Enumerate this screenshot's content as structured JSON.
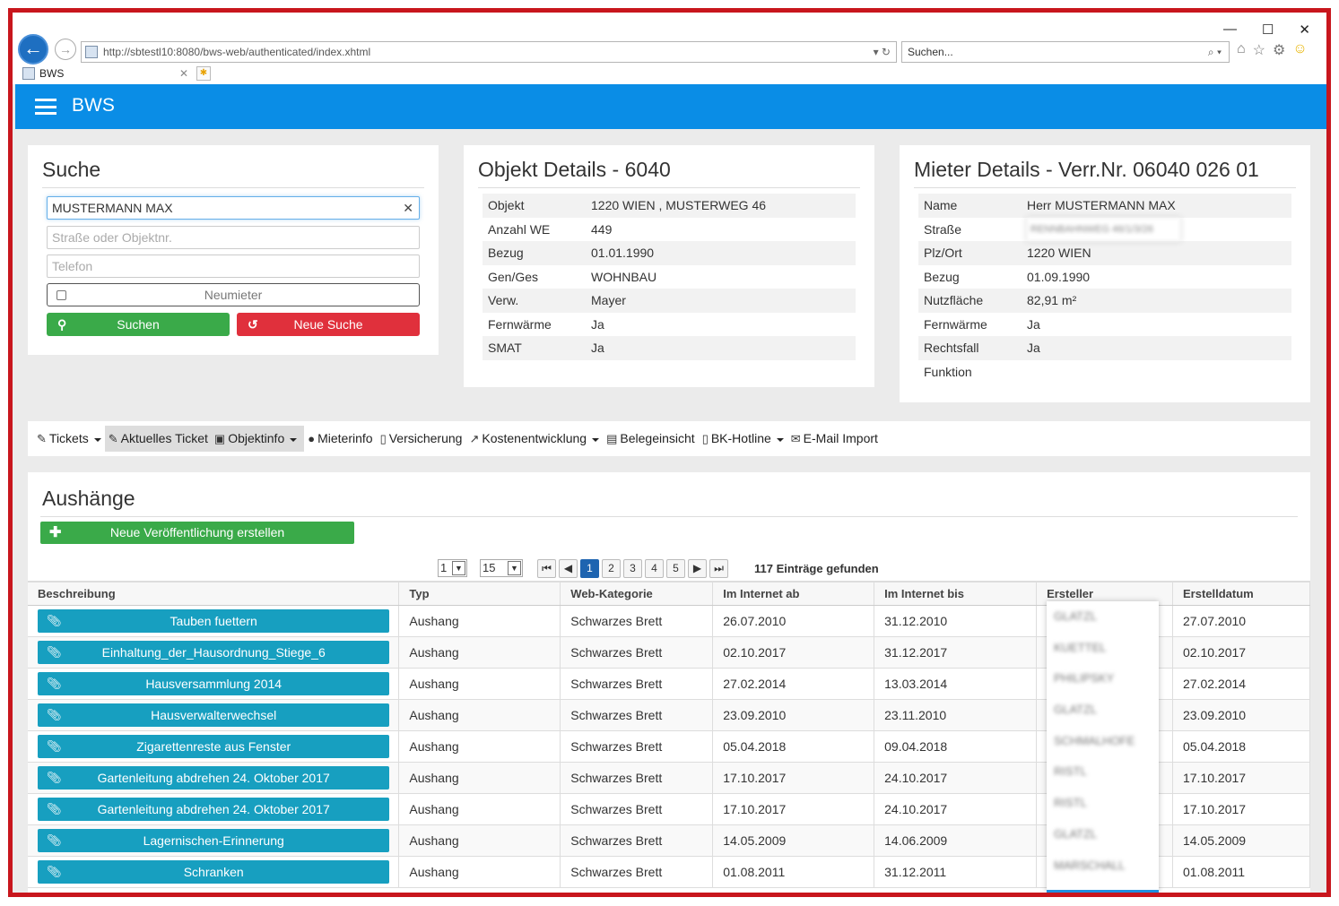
{
  "browser": {
    "url": "http://sbtestl10:8080/bws-web/authenticated/index.xhtml",
    "search_placeholder": "Suchen...",
    "tab_title": "BWS"
  },
  "app": {
    "title": "BWS"
  },
  "suche": {
    "title": "Suche",
    "name_value": "MUSTERMANN MAX",
    "street_placeholder": "Straße oder Objektnr.",
    "phone_placeholder": "Telefon",
    "neumieter_label": "Neumieter",
    "search_button": "Suchen",
    "reset_button": "Neue Suche"
  },
  "objekt": {
    "title": "Objekt Details - 6040",
    "rows": [
      {
        "k": "Objekt",
        "v": "1220 WIEN , MUSTERWEG 46"
      },
      {
        "k": "Anzahl WE",
        "v": "449"
      },
      {
        "k": "Bezug",
        "v": "01.01.1990"
      },
      {
        "k": "Gen/Ges",
        "v": "WOHNBAU"
      },
      {
        "k": "Verw.",
        "v": "Mayer"
      },
      {
        "k": "Fernwärme",
        "v": "Ja"
      },
      {
        "k": "SMAT",
        "v": "Ja"
      }
    ]
  },
  "mieter": {
    "title": "Mieter Details - Verr.Nr. 06040 026 01",
    "rows": [
      {
        "k": "Name",
        "v": "Herr MUSTERMANN MAX"
      },
      {
        "k": "Straße",
        "v": "RENNBAHNWEG 46/1/3/26"
      },
      {
        "k": "Plz/Ort",
        "v": "1220 WIEN"
      },
      {
        "k": "Bezug",
        "v": "01.09.1990"
      },
      {
        "k": "Nutzfläche",
        "v": "82,91 m²"
      },
      {
        "k": "Fernwärme",
        "v": "Ja"
      },
      {
        "k": "Rechtsfall",
        "v": "Ja"
      },
      {
        "k": "Funktion",
        "v": ""
      }
    ]
  },
  "nav": {
    "tickets": "Tickets",
    "aktuelles_ticket": "Aktuelles Ticket",
    "objektinfo": "Objektinfo",
    "mieterinfo": "Mieterinfo",
    "versicherung": "Versicherung",
    "kostenentwicklung": "Kostenentwicklung",
    "belegeinsicht": "Belegeinsicht",
    "bk_hotline": "BK-Hotline",
    "email_import": "E-Mail Import"
  },
  "aushaenge": {
    "title": "Aushänge",
    "new_button": "Neue Veröffentlichung erstellen",
    "page_select": "1",
    "rows_per_page": "15",
    "pages": [
      "1",
      "2",
      "3",
      "4",
      "5"
    ],
    "current_page": "1",
    "entries_text": "117 Einträge gefunden",
    "columns": [
      "Beschreibung",
      "Typ",
      "Web-Kategorie",
      "Im Internet ab",
      "Im Internet bis",
      "Ersteller",
      "Erstelldatum"
    ],
    "rows": [
      {
        "desc": "Tauben fuettern",
        "typ": "Aushang",
        "kat": "Schwarzes Brett",
        "ab": "26.07.2010",
        "bis": "31.12.2010",
        "ersteller": "GLATZL",
        "datum": "27.07.2010"
      },
      {
        "desc": "Einhaltung_der_Hausordnung_Stiege_6",
        "typ": "Aushang",
        "kat": "Schwarzes Brett",
        "ab": "02.10.2017",
        "bis": "31.12.2017",
        "ersteller": "KUETTEL",
        "datum": "02.10.2017"
      },
      {
        "desc": "Hausversammlung 2014",
        "typ": "Aushang",
        "kat": "Schwarzes Brett",
        "ab": "27.02.2014",
        "bis": "13.03.2014",
        "ersteller": "PHILIPSKY",
        "datum": "27.02.2014"
      },
      {
        "desc": "Hausverwalterwechsel",
        "typ": "Aushang",
        "kat": "Schwarzes Brett",
        "ab": "23.09.2010",
        "bis": "23.11.2010",
        "ersteller": "GLATZL",
        "datum": "23.09.2010"
      },
      {
        "desc": "Zigarettenreste aus Fenster",
        "typ": "Aushang",
        "kat": "Schwarzes Brett",
        "ab": "05.04.2018",
        "bis": "09.04.2018",
        "ersteller": "SCHMALHOFE",
        "datum": "05.04.2018"
      },
      {
        "desc": "Gartenleitung abdrehen 24. Oktober 2017",
        "typ": "Aushang",
        "kat": "Schwarzes Brett",
        "ab": "17.10.2017",
        "bis": "24.10.2017",
        "ersteller": "RISTL",
        "datum": "17.10.2017"
      },
      {
        "desc": "Gartenleitung abdrehen 24. Oktober 2017",
        "typ": "Aushang",
        "kat": "Schwarzes Brett",
        "ab": "17.10.2017",
        "bis": "24.10.2017",
        "ersteller": "RISTL",
        "datum": "17.10.2017"
      },
      {
        "desc": "Lagernischen-Erinnerung",
        "typ": "Aushang",
        "kat": "Schwarzes Brett",
        "ab": "14.05.2009",
        "bis": "14.06.2009",
        "ersteller": "GLATZL",
        "datum": "14.05.2009"
      },
      {
        "desc": "Schranken",
        "typ": "Aushang",
        "kat": "Schwarzes Brett",
        "ab": "01.08.2011",
        "bis": "31.12.2011",
        "ersteller": "MARSCHALL",
        "datum": "01.08.2011"
      }
    ]
  },
  "colors": {
    "appbar": "#0a8de6",
    "success": "#3aaa49",
    "danger": "#e0303c",
    "info": "#179fc0",
    "frame": "#c8161d"
  }
}
